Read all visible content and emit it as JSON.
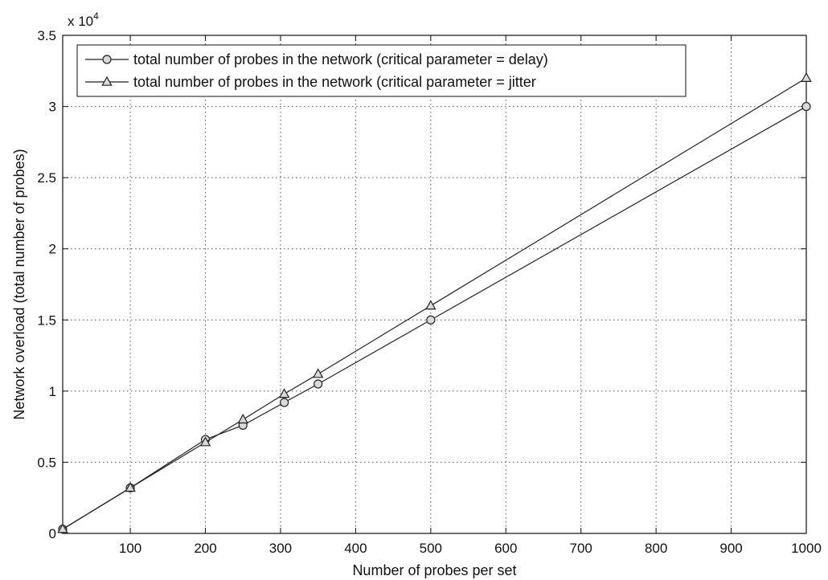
{
  "chart_data": {
    "type": "line",
    "title": "",
    "xlabel": "Number of probes per set",
    "ylabel": "Network overload (total number of probes)",
    "y_multiplier_label": "x 10",
    "y_multiplier_exponent": "4",
    "xlim": [
      10,
      1000
    ],
    "ylim": [
      0,
      35000
    ],
    "x_ticks": [
      100,
      200,
      300,
      400,
      500,
      600,
      700,
      800,
      900,
      1000
    ],
    "y_ticks": [
      0,
      5000,
      10000,
      15000,
      20000,
      25000,
      30000,
      35000
    ],
    "x_tick_labels": [
      "100",
      "200",
      "300",
      "400",
      "500",
      "600",
      "700",
      "800",
      "900",
      "1000"
    ],
    "y_tick_labels": [
      "0",
      "0.5",
      "1",
      "1.5",
      "2",
      "2.5",
      "3",
      "3.5"
    ],
    "grid": true,
    "legend_position": "top-left",
    "series": [
      {
        "name": "total number of probes in the network (critical parameter = delay)",
        "marker": "circle",
        "x": [
          10,
          100,
          200,
          250,
          305,
          350,
          500,
          1000
        ],
        "y": [
          300,
          3200,
          6600,
          7600,
          9200,
          10500,
          15000,
          30000
        ]
      },
      {
        "name": "total number of probes in the network (critical parameter = jitter",
        "marker": "triangle",
        "x": [
          10,
          100,
          200,
          250,
          305,
          350,
          500,
          1000
        ],
        "y": [
          300,
          3200,
          6400,
          8000,
          9800,
          11200,
          16000,
          32000
        ]
      }
    ],
    "colors": {
      "line": "#222222",
      "marker_fill": "#d9d9d9",
      "grid": "#555555"
    }
  }
}
